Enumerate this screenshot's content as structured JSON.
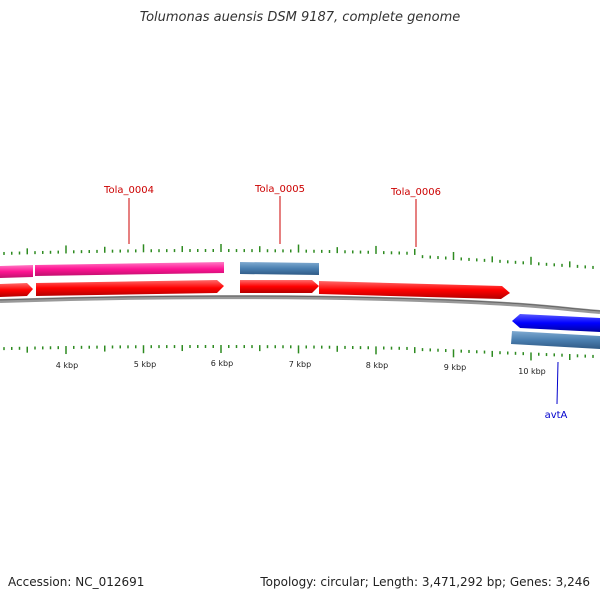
{
  "title": "Tolumonas auensis DSM 9187, complete genome",
  "footer": {
    "accession": "Accession: NC_012691",
    "summary": "Topology: circular; Length: 3,471,292 bp; Genes: 3,246"
  },
  "colors": {
    "cds_forward": "#ff0000",
    "cds_reverse": "#0000ff",
    "gene_pink": "#ff1493",
    "gene_steel": "#4a7fb0",
    "backbone": "#808080",
    "ticks": "#2e8b20",
    "label_red": "#cc0000",
    "label_blue": "#0000cc"
  },
  "genes": [
    {
      "name": "Tola_0004",
      "color": "label_red"
    },
    {
      "name": "Tola_0005",
      "color": "label_red"
    },
    {
      "name": "Tola_0006",
      "color": "label_red"
    },
    {
      "name": "avtA",
      "color": "label_blue"
    }
  ],
  "scale_labels": [
    "4 kbp",
    "5 kbp",
    "6 kbp",
    "7 kbp",
    "8 kbp",
    "9 kbp",
    "10 kbp"
  ]
}
